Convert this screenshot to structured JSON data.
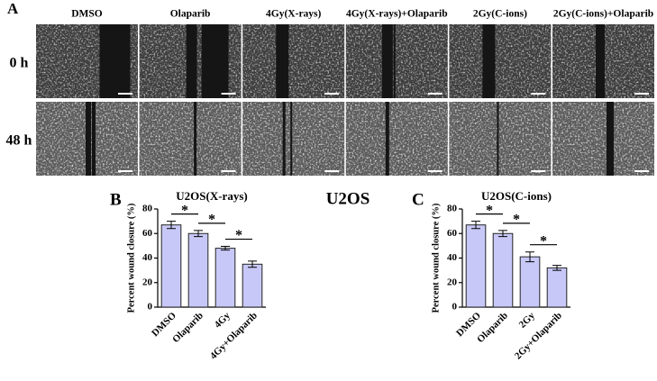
{
  "figure": {
    "panel_a": "A",
    "panel_b": "B",
    "panel_c": "C",
    "center_title": "U2OS",
    "columns": [
      "DMSO",
      "Olaparib",
      "4Gy(X-rays)",
      "4Gy(X-rays)+Olaparib",
      "2Gy(C-ions)",
      "2Gy(C-ions)+Olaparib"
    ],
    "rows": [
      "0 h",
      "48 h"
    ]
  },
  "chart_data": [
    {
      "type": "bar",
      "title": "U2OS(X-rays)",
      "y_label": "Percent wound closure (%)",
      "categories": [
        "DMSO",
        "Olaparib",
        "4Gy",
        "4Gy+Olaparib"
      ],
      "values": [
        67,
        60,
        48,
        35
      ],
      "errors": [
        3,
        2.5,
        1.5,
        2.5
      ],
      "color": "#c8c8f8",
      "ylim": [
        0,
        80
      ],
      "yticks": [
        0,
        20,
        40,
        60,
        80
      ],
      "annotations": [
        "*",
        "*",
        "*"
      ]
    },
    {
      "type": "bar",
      "title": "U2OS(C-ions)",
      "y_label": "Percent wound closure (%)",
      "categories": [
        "DMSO",
        "Olaparib",
        "2Gy",
        "2Gy+Olaparib"
      ],
      "values": [
        67,
        60,
        41,
        32
      ],
      "errors": [
        3,
        2.5,
        4,
        2
      ],
      "color": "#c8c8f8",
      "ylim": [
        0,
        80
      ],
      "yticks": [
        0,
        20,
        40,
        60,
        80
      ],
      "annotations": [
        "*",
        "*",
        "*"
      ]
    }
  ]
}
